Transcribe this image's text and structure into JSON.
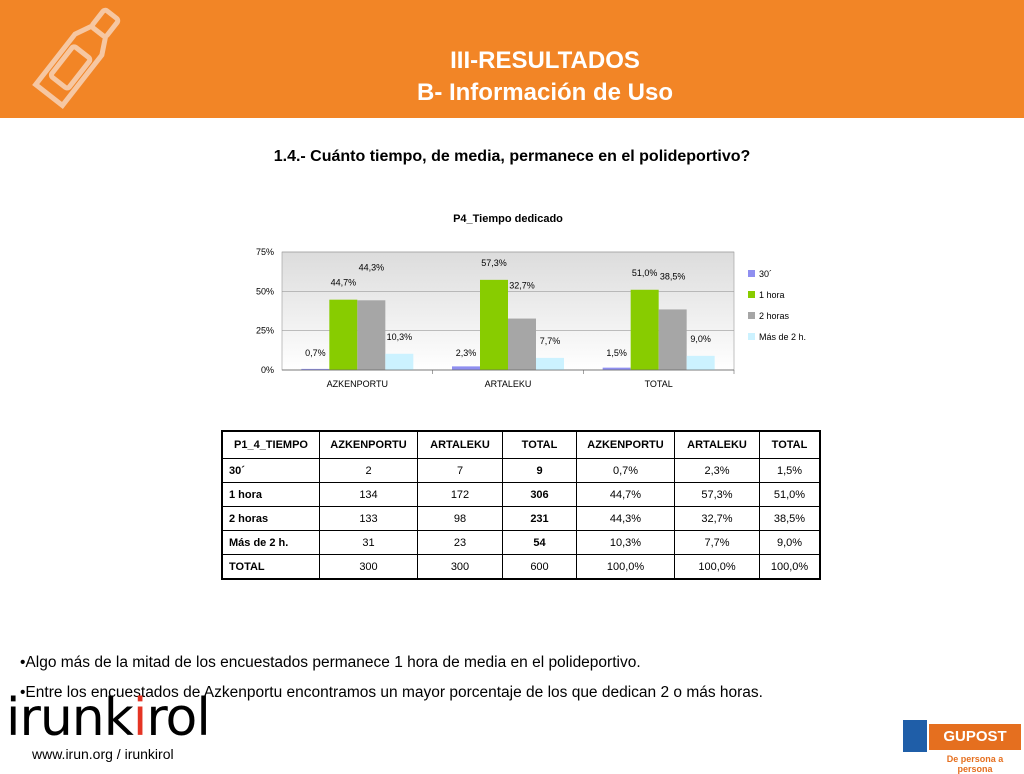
{
  "header": {
    "title_line1": "III-RESULTADOS",
    "title_line2": "B- Información de Uso"
  },
  "question": "1.4.- Cuánto tiempo, de media, permanece en el polideportivo?",
  "chart_data": {
    "type": "bar",
    "title": "P4_Tiempo dedicado",
    "categories": [
      "AZKENPORTU",
      "ARTALEKU",
      "TOTAL"
    ],
    "series": [
      {
        "name": "30´",
        "values": [
          0.7,
          2.3,
          1.5
        ],
        "labels": [
          "0,7%",
          "2,3%",
          "1,5%"
        ],
        "color": "#8f8ff0"
      },
      {
        "name": "1 hora",
        "values": [
          44.7,
          57.3,
          51.0
        ],
        "labels": [
          "44,7%",
          "57,3%",
          "51,0%"
        ],
        "color": "#88cc00"
      },
      {
        "name": "2 horas",
        "values": [
          44.3,
          32.7,
          38.5
        ],
        "labels": [
          "44,3%",
          "32,7%",
          "38,5%"
        ],
        "color": "#a6a6a6"
      },
      {
        "name": "Más de 2 h.",
        "values": [
          10.3,
          7.7,
          9.0
        ],
        "labels": [
          "10,3%",
          "7,7%",
          "9,0%"
        ],
        "color": "#ccf2ff"
      }
    ],
    "ylim": [
      0,
      75
    ],
    "yticks": [
      0,
      25,
      50,
      75
    ],
    "ytick_labels": [
      "0%",
      "25%",
      "50%",
      "75%"
    ],
    "legend": "right",
    "grid": true
  },
  "table": {
    "headers": [
      "P1_4_TIEMPO",
      "AZKENPORTU",
      "ARTALEKU",
      "TOTAL",
      "AZKENPORTU",
      "ARTALEKU",
      "TOTAL"
    ],
    "rows": [
      [
        "30´",
        "2",
        "7",
        "9",
        "0,7%",
        "2,3%",
        "1,5%"
      ],
      [
        "1 hora",
        "134",
        "172",
        "306",
        "44,7%",
        "57,3%",
        "51,0%"
      ],
      [
        "2 horas",
        "133",
        "98",
        "231",
        "44,3%",
        "32,7%",
        "38,5%"
      ],
      [
        "Más de 2 h.",
        "31",
        "23",
        "54",
        "10,3%",
        "7,7%",
        "9,0%"
      ],
      [
        "TOTAL",
        "300",
        "300",
        "600",
        "100,0%",
        "100,0%",
        "100,0%"
      ]
    ]
  },
  "bullets": [
    "•Algo más de la mitad de los encuestados permanece 1 hora de media en el polideportivo.",
    "•Entre los encuestados de Azkenportu encontramos un mayor porcentaje de los que dedican 2 o más horas."
  ],
  "footer": {
    "logo_part1": "irunk",
    "logo_accent": "i",
    "logo_part2": "rol",
    "url": "www.irun.org / irunkirol",
    "partner_name": "GUPOST",
    "partner_tagline": "De persona a persona"
  },
  "icons": {
    "header_icon": "bottle-icon",
    "partner_icon": "gupost-logo-icon"
  }
}
